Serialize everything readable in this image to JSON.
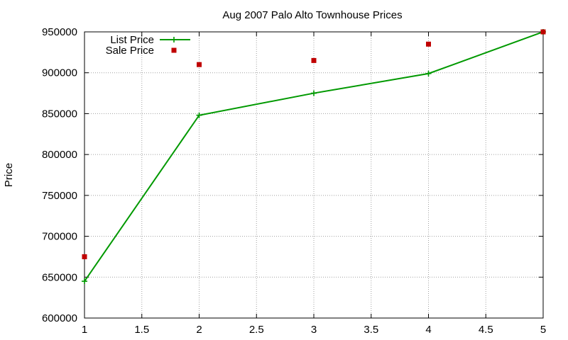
{
  "chart_data": {
    "type": "line",
    "title": "Aug 2007 Palo Alto Townhouse Prices",
    "ylabel": "Price",
    "xlabel": "",
    "xlim": [
      1,
      5
    ],
    "ylim": [
      600000,
      950000
    ],
    "x_ticks": [
      "1",
      "1.5",
      "2",
      "2.5",
      "3",
      "3.5",
      "4",
      "4.5",
      "5"
    ],
    "y_ticks": [
      "600000",
      "650000",
      "700000",
      "750000",
      "800000",
      "850000",
      "900000",
      "950000"
    ],
    "grid": true,
    "legend_position": "top-left",
    "series": [
      {
        "name": "List Price",
        "style": "linespoints",
        "marker": "plus",
        "color": "#009900",
        "points": [
          [
            1,
            645000
          ],
          [
            2,
            848000
          ],
          [
            3,
            875000
          ],
          [
            4,
            899000
          ],
          [
            5,
            950000
          ]
        ]
      },
      {
        "name": "Sale Price",
        "style": "points",
        "marker": "square",
        "color": "#c00000",
        "points": [
          [
            1,
            675000
          ],
          [
            2,
            910000
          ],
          [
            3,
            915000
          ],
          [
            4,
            935000
          ],
          [
            5,
            950000
          ]
        ]
      }
    ]
  }
}
